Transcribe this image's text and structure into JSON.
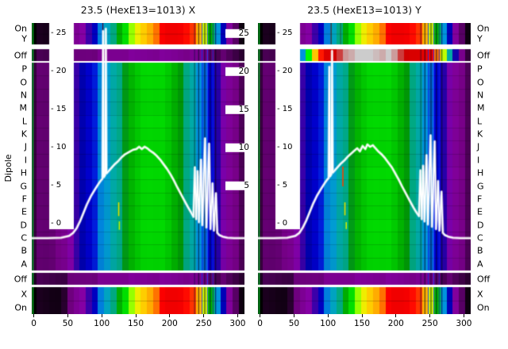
{
  "figure": {
    "y_axis_title": "Dipole",
    "row_labels": [
      "On",
      "Y",
      "Off",
      "P",
      "O",
      "N",
      "M",
      "L",
      "K",
      "J",
      "I",
      "H",
      "G",
      "F",
      "E",
      "D",
      "C",
      "B",
      "A",
      "Off",
      "X",
      "On"
    ],
    "inner_tick_labels": [
      "- 25",
      "- 20",
      "- 15",
      "- 10",
      "- 5",
      "- 0"
    ],
    "mid_tick_labels": [
      "25",
      "20",
      "15",
      "10",
      "5"
    ],
    "x_tick_labels": [
      "0",
      "50",
      "100",
      "150",
      "200",
      "250",
      "300"
    ]
  },
  "heatmap_common": {
    "colormap": "nipy-spectral-like",
    "x_range": [
      -3,
      310
    ],
    "colormap_stops": [
      [
        0,
        "#000000"
      ],
      [
        0.05,
        "#770088"
      ],
      [
        0.1,
        "#8800aa"
      ],
      [
        0.15,
        "#0000aa"
      ],
      [
        0.2,
        "#0000dd"
      ],
      [
        0.25,
        "#0077dd"
      ],
      [
        0.3,
        "#0099dd"
      ],
      [
        0.35,
        "#00aaaa"
      ],
      [
        0.4,
        "#00aa88"
      ],
      [
        0.45,
        "#009900"
      ],
      [
        0.5,
        "#00bb00"
      ],
      [
        0.55,
        "#00dd00"
      ],
      [
        0.6,
        "#00ff00"
      ],
      [
        0.65,
        "#bbff00"
      ],
      [
        0.7,
        "#eeee00"
      ],
      [
        0.75,
        "#ffcc00"
      ],
      [
        0.8,
        "#ff9900"
      ],
      [
        0.85,
        "#ff0000"
      ],
      [
        0.9,
        "#dd0000"
      ],
      [
        0.95,
        "#cc0000"
      ],
      [
        1,
        "#cccccc"
      ]
    ],
    "profiles": {
      "body": [
        [
          -3,
          0.03
        ],
        [
          25,
          0.04
        ],
        [
          50,
          0.08
        ],
        [
          70,
          0.15
        ],
        [
          90,
          0.22
        ],
        [
          105,
          0.29
        ],
        [
          120,
          0.37
        ],
        [
          135,
          0.45
        ],
        [
          150,
          0.51
        ],
        [
          165,
          0.55
        ],
        [
          182,
          0.55
        ],
        [
          198,
          0.52
        ],
        [
          212,
          0.47
        ],
        [
          225,
          0.41
        ],
        [
          236,
          0.33
        ],
        [
          246,
          0.27
        ],
        [
          257,
          0.22
        ],
        [
          267,
          0.16
        ],
        [
          278,
          0.1
        ],
        [
          292,
          0.06
        ],
        [
          310,
          0.03
        ]
      ],
      "band": [
        [
          -3,
          0
        ],
        [
          35,
          0.01
        ],
        [
          55,
          0.04
        ],
        [
          75,
          0.1
        ],
        [
          90,
          0.18
        ],
        [
          100,
          0.26
        ],
        [
          110,
          0.34
        ],
        [
          120,
          0.43
        ],
        [
          130,
          0.52
        ],
        [
          140,
          0.6
        ],
        [
          150,
          0.68
        ],
        [
          160,
          0.74
        ],
        [
          172,
          0.79
        ],
        [
          185,
          0.84
        ],
        [
          200,
          0.87
        ],
        [
          215,
          0.87
        ],
        [
          228,
          0.85
        ],
        [
          240,
          0.8
        ],
        [
          248,
          0.73
        ],
        [
          255,
          0.63
        ],
        [
          261,
          0.5
        ],
        [
          267,
          0.36
        ],
        [
          273,
          0.24
        ],
        [
          280,
          0.14
        ],
        [
          290,
          0.06
        ],
        [
          302,
          0.02
        ],
        [
          310,
          0
        ]
      ],
      "off_dark": [
        [
          -3,
          0.02
        ],
        [
          40,
          0.03
        ],
        [
          80,
          0.05
        ],
        [
          140,
          0.07
        ],
        [
          200,
          0.07
        ],
        [
          250,
          0.05
        ],
        [
          285,
          0.03
        ],
        [
          310,
          0.02
        ]
      ],
      "off_hot": [
        [
          -3,
          0.02
        ],
        [
          40,
          0.03
        ],
        [
          55,
          0.06
        ],
        [
          62,
          0.25
        ],
        [
          70,
          0.55
        ],
        [
          80,
          0.75
        ],
        [
          90,
          0.85
        ],
        [
          100,
          0.9
        ],
        [
          112,
          0.95
        ],
        [
          125,
          0.99
        ],
        [
          135,
          1
        ],
        [
          190,
          1
        ],
        [
          205,
          0.97
        ],
        [
          220,
          0.93
        ],
        [
          235,
          0.9
        ],
        [
          248,
          0.87
        ],
        [
          258,
          0.84
        ],
        [
          266,
          0.78
        ],
        [
          272,
          0.6
        ],
        [
          278,
          0.38
        ],
        [
          285,
          0.18
        ],
        [
          293,
          0.07
        ],
        [
          303,
          0.03
        ],
        [
          310,
          0.02
        ]
      ]
    },
    "stripes": [
      {
        "x": -2.2,
        "w": 1.8,
        "color": "#00bb22",
        "alpha": 0.95,
        "seg": "all"
      },
      {
        "x": 236,
        "w": 1,
        "color": "#001133",
        "alpha": 0.6,
        "seg": "all"
      },
      {
        "x": 242,
        "w": 1.2,
        "color": "#000820",
        "alpha": 0.75,
        "seg": "all"
      },
      {
        "x": 247,
        "w": 1,
        "color": "#1133ee",
        "alpha": 0.85,
        "seg": "all"
      },
      {
        "x": 251,
        "w": 1.2,
        "color": "#000820",
        "alpha": 0.8,
        "seg": "all"
      },
      {
        "x": 255,
        "w": 1,
        "color": "#2244ff",
        "alpha": 0.85,
        "seg": "all"
      },
      {
        "x": 259,
        "w": 1.2,
        "color": "#000a25",
        "alpha": 0.8,
        "seg": "all"
      },
      {
        "x": 263,
        "w": 1,
        "color": "#1133dd",
        "alpha": 0.8,
        "seg": "all"
      },
      {
        "x": 267,
        "w": 1.2,
        "color": "#000820",
        "alpha": 0.75,
        "seg": "all"
      }
    ]
  },
  "chart_data": [
    {
      "type": "heatmap",
      "title": "23.5 (HexE13=1013) X",
      "x_ticks": [
        0,
        50,
        100,
        150,
        200,
        250,
        300
      ],
      "value_ticks": [
        25,
        20,
        15,
        10,
        5,
        0
      ],
      "segment_profiles": {
        "band_top": "band",
        "off_top": "off_dark",
        "body": "body",
        "off_bot": "off_dark",
        "band_bot": "band"
      },
      "extra_stripes": [
        {
          "x": 101,
          "w": 1.2,
          "color": "#550000",
          "alpha": 0.9,
          "seg": "band_top"
        }
      ],
      "marks": [
        {
          "x": 124,
          "v_from": 2.8,
          "v_to": 1,
          "color": "#dddd00"
        },
        {
          "x": 125,
          "v_from": 0.3,
          "v_to": -0.8,
          "color": "#bbee00"
        }
      ],
      "curve": [
        [
          -3,
          -1.9
        ],
        [
          20,
          -1.9
        ],
        [
          40,
          -1.85
        ],
        [
          52,
          -1.6
        ],
        [
          58,
          -1.2
        ],
        [
          63,
          -0.6
        ],
        [
          68,
          0.3
        ],
        [
          73,
          1.4
        ],
        [
          78,
          2.5
        ],
        [
          84,
          3.6
        ],
        [
          90,
          4.5
        ],
        [
          95,
          5.2
        ],
        [
          99,
          5.7
        ],
        [
          101,
          5.9
        ],
        [
          102,
          25.3
        ],
        [
          103,
          6.1
        ],
        [
          105,
          6.4
        ],
        [
          106,
          25.6
        ],
        [
          107,
          6.6
        ],
        [
          110,
          6.9
        ],
        [
          114,
          7.3
        ],
        [
          119,
          7.8
        ],
        [
          124,
          8.2
        ],
        [
          129,
          8.7
        ],
        [
          134,
          9.1
        ],
        [
          140,
          9.4
        ],
        [
          146,
          9.7
        ],
        [
          151,
          9.8
        ],
        [
          155,
          10.1
        ],
        [
          159,
          9.8
        ],
        [
          163,
          10.1
        ],
        [
          167,
          9.9
        ],
        [
          171,
          9.6
        ],
        [
          176,
          9.3
        ],
        [
          181,
          8.9
        ],
        [
          186,
          8.4
        ],
        [
          191,
          7.8
        ],
        [
          196,
          7.2
        ],
        [
          201,
          6.5
        ],
        [
          206,
          5.7
        ],
        [
          211,
          4.8
        ],
        [
          217,
          3.8
        ],
        [
          223,
          2.8
        ],
        [
          228,
          2
        ],
        [
          232,
          1.4
        ],
        [
          235,
          0.9
        ],
        [
          237,
          7.4
        ],
        [
          239,
          0.6
        ],
        [
          241,
          6.9
        ],
        [
          243,
          0.2
        ],
        [
          246,
          8.4
        ],
        [
          248,
          -0.2
        ],
        [
          252,
          11.2
        ],
        [
          254,
          -0.5
        ],
        [
          258,
          10.5
        ],
        [
          260,
          -0.7
        ],
        [
          263,
          5.3
        ],
        [
          265,
          -0.9
        ],
        [
          268,
          4
        ],
        [
          270,
          -1.2
        ],
        [
          273,
          -1.5
        ],
        [
          278,
          -1.7
        ],
        [
          285,
          -1.85
        ],
        [
          295,
          -1.9
        ],
        [
          310,
          -1.9
        ]
      ]
    },
    {
      "type": "heatmap",
      "title": "23.5 (HexE13=1013) Y",
      "x_ticks": [
        0,
        50,
        100,
        150,
        200,
        250,
        300
      ],
      "value_ticks": [
        25,
        20,
        15,
        10,
        5,
        0
      ],
      "segment_profiles": {
        "band_top": "band",
        "off_top": "off_hot",
        "body": "body",
        "off_bot": "off_dark",
        "band_bot": "band"
      },
      "extra_stripes": [
        {
          "x": 104,
          "w": 1.2,
          "color": "#550000",
          "alpha": 0.9,
          "seg": "band_top"
        },
        {
          "x": 118,
          "w": 1,
          "color": "#333300",
          "alpha": 0.6,
          "seg": "band_top"
        }
      ],
      "marks": [
        {
          "x": 121,
          "v_from": 7.5,
          "v_to": 4.9,
          "color": "#ee4400"
        },
        {
          "x": 124,
          "v_from": 2.8,
          "v_to": 1.1,
          "color": "#dddd00"
        },
        {
          "x": 126,
          "v_from": 0.2,
          "v_to": -0.7,
          "color": "#ccee00"
        }
      ],
      "curve": [
        [
          -3,
          -1.9
        ],
        [
          20,
          -1.9
        ],
        [
          40,
          -1.85
        ],
        [
          52,
          -1.6
        ],
        [
          58,
          -1.2
        ],
        [
          63,
          -0.5
        ],
        [
          68,
          0.4
        ],
        [
          73,
          1.5
        ],
        [
          78,
          2.6
        ],
        [
          84,
          3.7
        ],
        [
          90,
          4.6
        ],
        [
          95,
          5.3
        ],
        [
          99,
          5.8
        ],
        [
          101,
          6
        ],
        [
          102,
          20.6
        ],
        [
          103,
          6.2
        ],
        [
          105,
          6.5
        ],
        [
          106,
          22.7
        ],
        [
          107,
          6.7
        ],
        [
          110,
          7
        ],
        [
          114,
          7.4
        ],
        [
          119,
          7.9
        ],
        [
          124,
          8.3
        ],
        [
          129,
          8.8
        ],
        [
          134,
          9.2
        ],
        [
          139,
          9.6
        ],
        [
          143,
          9.9
        ],
        [
          147,
          9.5
        ],
        [
          151,
          10.2
        ],
        [
          155,
          9.8
        ],
        [
          158,
          10.4
        ],
        [
          162,
          10.1
        ],
        [
          166,
          10.3
        ],
        [
          170,
          9.9
        ],
        [
          174,
          9.5
        ],
        [
          179,
          9.1
        ],
        [
          184,
          8.6
        ],
        [
          189,
          8
        ],
        [
          194,
          7.4
        ],
        [
          199,
          6.6
        ],
        [
          204,
          5.8
        ],
        [
          209,
          4.9
        ],
        [
          215,
          3.9
        ],
        [
          221,
          2.9
        ],
        [
          226,
          2.1
        ],
        [
          230,
          1.5
        ],
        [
          234,
          1
        ],
        [
          236,
          7
        ],
        [
          238,
          0.6
        ],
        [
          240,
          7.6
        ],
        [
          242,
          0.3
        ],
        [
          245,
          9
        ],
        [
          247,
          -0.1
        ],
        [
          251,
          11.6
        ],
        [
          253,
          -0.4
        ],
        [
          257,
          10.8
        ],
        [
          259,
          -0.7
        ],
        [
          262,
          5.6
        ],
        [
          264,
          -0.9
        ],
        [
          267,
          4.2
        ],
        [
          269,
          -1.2
        ],
        [
          272,
          -1.5
        ],
        [
          277,
          -1.7
        ],
        [
          284,
          -1.85
        ],
        [
          295,
          -1.9
        ],
        [
          310,
          -1.9
        ]
      ]
    }
  ]
}
